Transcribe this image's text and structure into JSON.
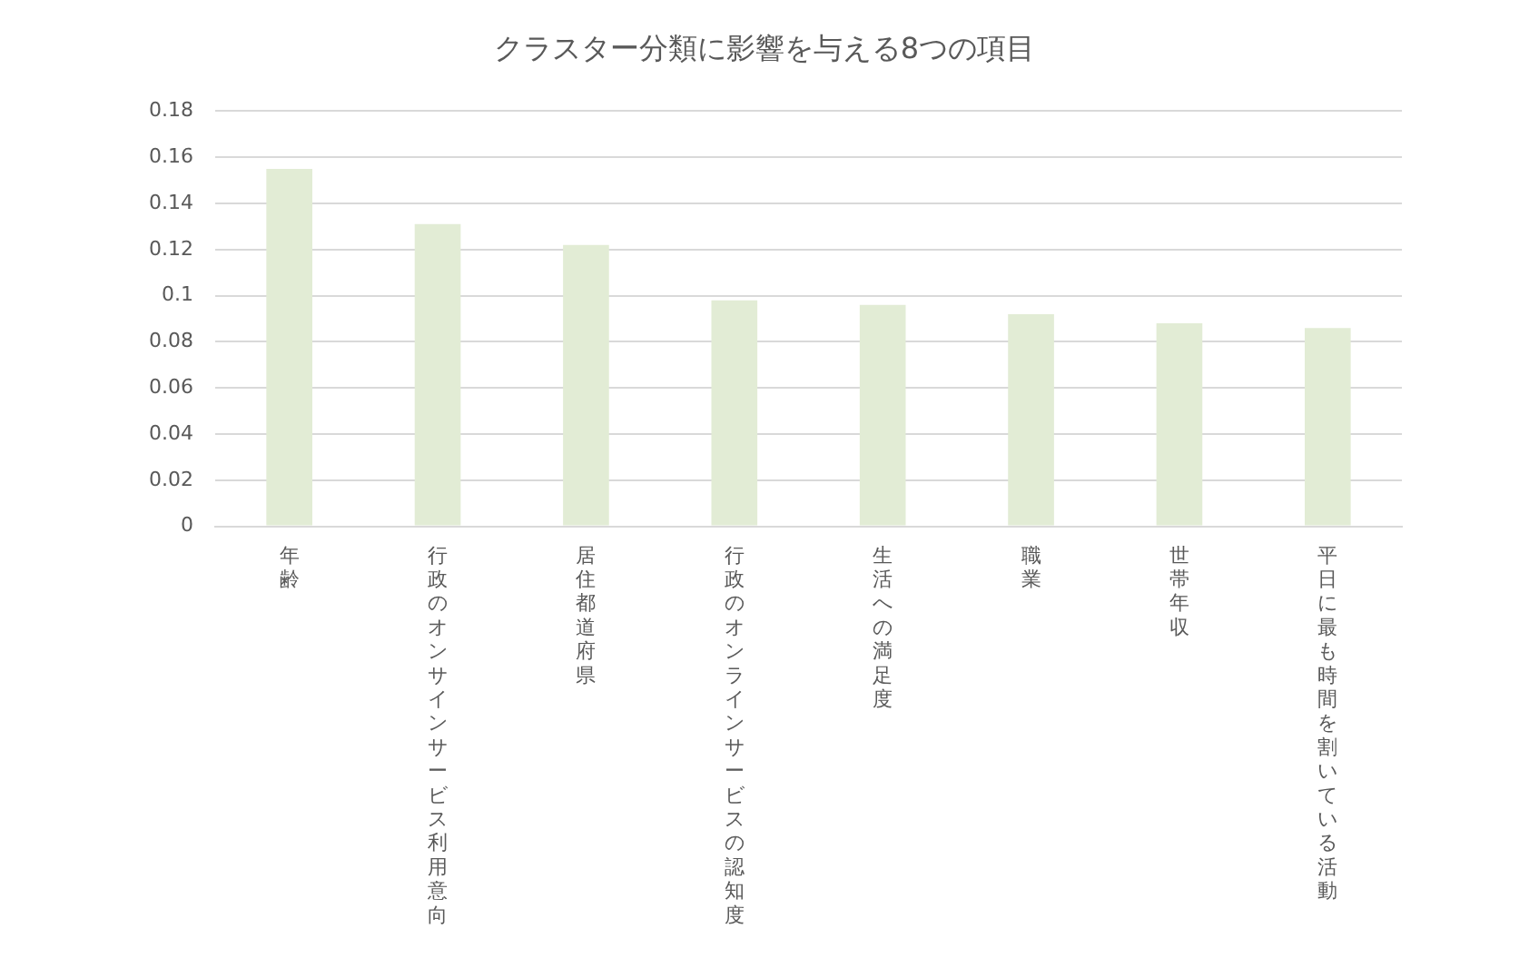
{
  "chart_data": {
    "type": "bar",
    "title": "クラスター分類に影響を与える8つの項目",
    "categories": [
      "年齢",
      "行政のオンサインサービス利用意向",
      "居住都道府県",
      "行政のオンラインサービスの認知度",
      "生活への満足度",
      "職業",
      "世帯年収",
      "平日に最も時間を割いている活動"
    ],
    "values": [
      0.155,
      0.131,
      0.122,
      0.098,
      0.096,
      0.092,
      0.088,
      0.086
    ],
    "color": "#e2ecd5",
    "ylim": [
      0,
      0.18
    ],
    "yticks": [
      0,
      0.02,
      0.04,
      0.06,
      0.08,
      0.1,
      0.12,
      0.14,
      0.16,
      0.18
    ],
    "grid": "y"
  }
}
